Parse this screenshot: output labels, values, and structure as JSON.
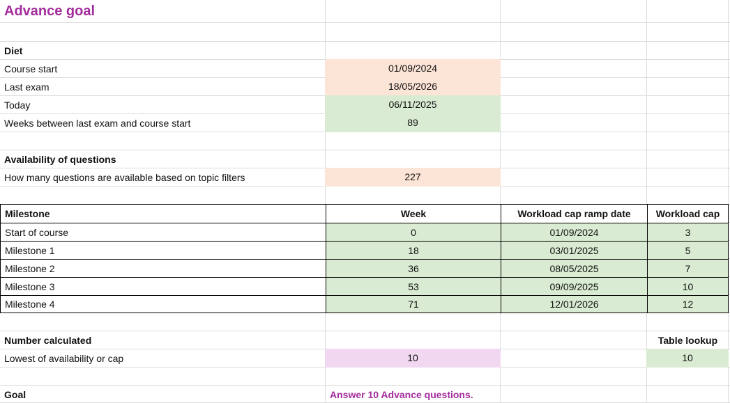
{
  "title": "Advance goal",
  "colors": {
    "accent_purple": "#A22C9C",
    "peach_fill": "#FCE4D6",
    "green_fill": "#D9EBD2",
    "pink_fill": "#F1D7F0",
    "table_border": "#000000",
    "gridline": "#DCDCDC"
  },
  "diet": {
    "heading": "Diet",
    "rows": [
      {
        "label": "Course start",
        "value": "01/09/2024"
      },
      {
        "label": "Last exam",
        "value": "18/05/2026"
      },
      {
        "label": "Today",
        "value": "06/11/2025"
      },
      {
        "label": "Weeks between last exam and course start",
        "value": "89"
      }
    ]
  },
  "availability": {
    "heading": "Availability of questions",
    "label": "How many questions are available based on topic filters",
    "value": "227"
  },
  "milestones": {
    "headers": [
      "Milestone",
      "Week",
      "Workload cap ramp date",
      "Workload cap"
    ],
    "rows": [
      {
        "name": "Start of course",
        "week": "0",
        "ramp_date": "01/09/2024",
        "cap": "3"
      },
      {
        "name": "Milestone 1",
        "week": "18",
        "ramp_date": "03/01/2025",
        "cap": "5"
      },
      {
        "name": "Milestone 2",
        "week": "36",
        "ramp_date": "08/05/2025",
        "cap": "7"
      },
      {
        "name": "Milestone 3",
        "week": "53",
        "ramp_date": "09/09/2025",
        "cap": "10"
      },
      {
        "name": "Milestone 4",
        "week": "71",
        "ramp_date": "12/01/2026",
        "cap": "12"
      }
    ]
  },
  "calculated": {
    "heading": "Number calculated",
    "lookup_heading": "Table lookup",
    "label": "Lowest of availability or cap",
    "value": "10",
    "lookup_value": "10"
  },
  "goal": {
    "heading": "Goal",
    "text": "Answer 10 Advance questions."
  }
}
